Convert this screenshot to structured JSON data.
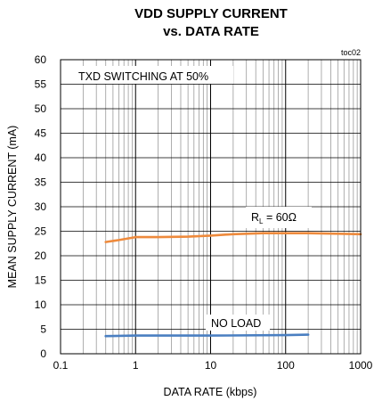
{
  "chart_data": {
    "type": "line",
    "title": "VDD SUPPLY CURRENT",
    "subtitle": "vs. DATA RATE",
    "tag": "toc02",
    "xlabel": "DATA RATE (kbps)",
    "ylabel": "MEAN SUPPLY CURRENT (mA)",
    "xscale": "log",
    "xlim": [
      0.1,
      1000
    ],
    "ylim": [
      0,
      60
    ],
    "x_ticks": [
      "0.1",
      "1",
      "10",
      "100",
      "1000"
    ],
    "y_ticks": [
      "0",
      "5",
      "10",
      "15",
      "20",
      "25",
      "30",
      "35",
      "40",
      "45",
      "50",
      "55",
      "60"
    ],
    "grid": true,
    "legend": "none",
    "annotations": {
      "condition": "TXD SWITCHING  AT 50%",
      "rl_main": "R",
      "rl_sub": "L",
      "rl_value": " = 60Ω",
      "no_load": "NO LOAD"
    },
    "series": [
      {
        "color": "#ee8a3c",
        "x": [
          0.4,
          0.6,
          1,
          2,
          5,
          10,
          20,
          50,
          100,
          200,
          500,
          1000
        ],
        "y": [
          22.8,
          23.2,
          23.8,
          23.8,
          23.9,
          24.1,
          24.4,
          24.6,
          24.6,
          24.6,
          24.5,
          24.4
        ]
      },
      {
        "color": "#4a7fc1",
        "x": [
          0.4,
          1,
          10,
          100,
          200
        ],
        "y": [
          3.6,
          3.7,
          3.7,
          3.8,
          3.9
        ]
      }
    ]
  }
}
